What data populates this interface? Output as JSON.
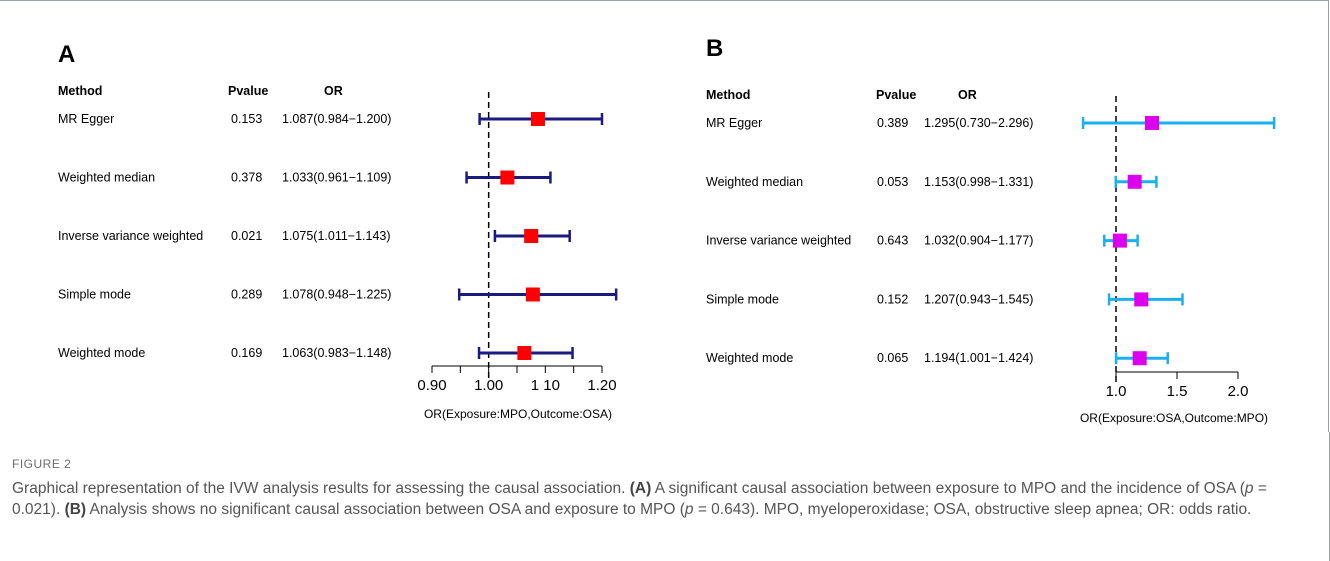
{
  "figure_label": "FIGURE 2",
  "caption": {
    "part1": "Graphical representation of the IVW analysis results for assessing the causal association. ",
    "a_tag": "(A)",
    "part2": " A significant causal association between exposure to MPO and the incidence of OSA (",
    "p_sym1": "p",
    "part3": " = 0.021). ",
    "b_tag": "(B)",
    "part4": " Analysis shows no significant causal association between OSA and exposure to MPO (",
    "p_sym2": "p",
    "part5": " = 0.643). MPO, myeloperoxidase; OSA, obstructive sleep apnea; OR: odds ratio."
  },
  "chart_data": [
    {
      "type": "forest",
      "panel": "A",
      "headers": {
        "method": "Method",
        "pvalue": "Pvalue",
        "or": "OR"
      },
      "rows": [
        {
          "method": "MR Egger",
          "pvalue": "0.153",
          "or_text": "1.087(0.984−1.200)",
          "or": 1.087,
          "lo": 0.984,
          "hi": 1.2
        },
        {
          "method": "Weighted median",
          "pvalue": "0.378",
          "or_text": "1.033(0.961−1.109)",
          "or": 1.033,
          "lo": 0.961,
          "hi": 1.109
        },
        {
          "method": "Inverse variance weighted",
          "pvalue": "0.021",
          "or_text": "1.075(1.011−1.143)",
          "or": 1.075,
          "lo": 1.011,
          "hi": 1.143
        },
        {
          "method": "Simple mode",
          "pvalue": "0.289",
          "or_text": "1.078(0.948−1.225)",
          "or": 1.078,
          "lo": 0.948,
          "hi": 1.225
        },
        {
          "method": "Weighted mode",
          "pvalue": "0.169",
          "or_text": "1.063(0.983−1.148)",
          "or": 1.063,
          "lo": 0.983,
          "hi": 1.148
        }
      ],
      "xlim": [
        0.9,
        1.2
      ],
      "major_ticks": [
        0.9,
        1.0,
        1.1,
        1.2
      ],
      "tick_labels": [
        "0.90",
        "1.00",
        "1 10",
        "1.20"
      ],
      "minor_ticks": [
        0.95,
        1.05,
        1.15
      ],
      "reference_line": 1.0,
      "xlabel": "OR(Exposure:MPO,Outcome:OSA)",
      "ci_color": "#1a1a80",
      "point_color": "#ff0000"
    },
    {
      "type": "forest",
      "panel": "B",
      "headers": {
        "method": "Method",
        "pvalue": "Pvalue",
        "or": "OR"
      },
      "rows": [
        {
          "method": "MR Egger",
          "pvalue": "0.389",
          "or_text": "1.295(0.730−2.296)",
          "or": 1.295,
          "lo": 0.73,
          "hi": 2.296
        },
        {
          "method": "Weighted median",
          "pvalue": "0.053",
          "or_text": "1.153(0.998−1.331)",
          "or": 1.153,
          "lo": 0.998,
          "hi": 1.331
        },
        {
          "method": "Inverse variance weighted",
          "pvalue": "0.643",
          "or_text": "1.032(0.904−1.177)",
          "or": 1.032,
          "lo": 0.904,
          "hi": 1.177
        },
        {
          "method": "Simple mode",
          "pvalue": "0.152",
          "or_text": "1.207(0.943−1.545)",
          "or": 1.207,
          "lo": 0.943,
          "hi": 1.545
        },
        {
          "method": "Weighted mode",
          "pvalue": "0.065",
          "or_text": "1.194(1.001−1.424)",
          "or": 1.194,
          "lo": 1.001,
          "hi": 1.424
        }
      ],
      "xlim": [
        1.0,
        2.0
      ],
      "major_ticks": [
        1.0,
        1.5,
        2.0
      ],
      "tick_labels": [
        "1.0",
        "1.5",
        "2.0"
      ],
      "minor_ticks": [],
      "reference_line": 1.0,
      "xlabel": "OR(Exposure:OSA,Outcome:MPO)",
      "ci_color": "#1ab0f0",
      "point_color": "#dd00ee"
    }
  ]
}
